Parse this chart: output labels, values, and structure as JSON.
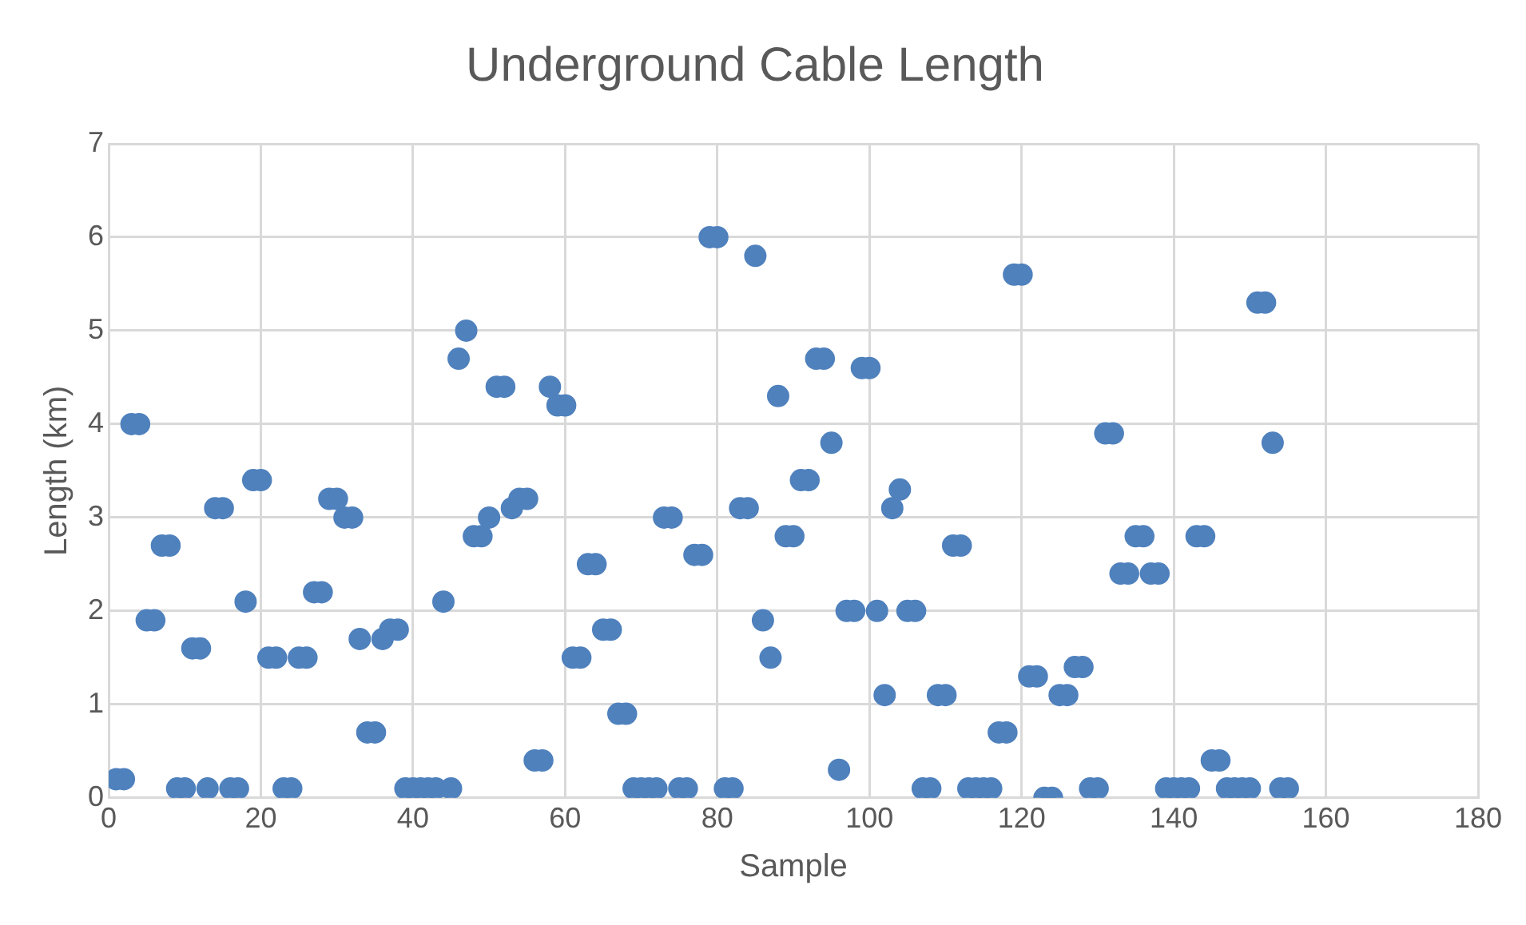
{
  "chart_data": {
    "type": "scatter",
    "title": "Underground Cable Length",
    "xlabel": "Sample",
    "ylabel": "Length (km)",
    "x": [
      1,
      2,
      3,
      4,
      5,
      6,
      7,
      8,
      9,
      10,
      11,
      12,
      13,
      14,
      15,
      16,
      17,
      18,
      19,
      20,
      21,
      22,
      23,
      24,
      25,
      26,
      27,
      28,
      29,
      30,
      31,
      32,
      33,
      34,
      35,
      36,
      37,
      38,
      39,
      40,
      41,
      42,
      43,
      44,
      45,
      46,
      47,
      48,
      49,
      50,
      51,
      52,
      53,
      54,
      55,
      56,
      57,
      58,
      59,
      60,
      61,
      62,
      63,
      64,
      65,
      66,
      67,
      68,
      69,
      70,
      71,
      72,
      73,
      74,
      75,
      76,
      77,
      78,
      79,
      80,
      81,
      82,
      83,
      84,
      85,
      86,
      87,
      88,
      89,
      90,
      91,
      92,
      93,
      94,
      95,
      96,
      97,
      98,
      99,
      100,
      101,
      102,
      103,
      104,
      105,
      106,
      107,
      108,
      109,
      110,
      111,
      112,
      113,
      114,
      115,
      116,
      117,
      118,
      119,
      120,
      121,
      122,
      123,
      124,
      125,
      126,
      127,
      128,
      129,
      130,
      131,
      132,
      133,
      134,
      135,
      136,
      137,
      138,
      139,
      140,
      141,
      142,
      143,
      144,
      145,
      146,
      147,
      148,
      149,
      150,
      151,
      152,
      153,
      154,
      155
    ],
    "series": [
      {
        "color": "#4f81bd",
        "values": [
          0.2,
          0.2,
          4.0,
          4.0,
          1.9,
          1.9,
          2.7,
          2.7,
          0.1,
          0.1,
          1.6,
          1.6,
          0.1,
          3.1,
          3.1,
          0.1,
          0.1,
          2.1,
          3.4,
          3.4,
          1.5,
          1.5,
          0.1,
          0.1,
          1.5,
          1.5,
          2.2,
          2.2,
          3.2,
          3.2,
          3.0,
          3.0,
          1.7,
          0.7,
          0.7,
          1.7,
          1.8,
          1.8,
          0.1,
          0.1,
          0.1,
          0.1,
          0.1,
          2.1,
          0.1,
          4.7,
          5.0,
          2.8,
          2.8,
          3.0,
          4.4,
          4.4,
          3.1,
          3.2,
          3.2,
          0.4,
          0.4,
          4.4,
          4.2,
          4.2,
          1.5,
          1.5,
          2.5,
          2.5,
          1.8,
          1.8,
          0.9,
          0.9,
          0.1,
          0.1,
          0.1,
          0.1,
          3.0,
          3.0,
          0.1,
          0.1,
          2.6,
          2.6,
          6.0,
          6.0,
          0.1,
          0.1,
          3.1,
          3.1,
          5.8,
          1.9,
          1.5,
          4.3,
          2.8,
          2.8,
          3.4,
          3.4,
          4.7,
          4.7,
          3.8,
          0.3,
          2.0,
          2.0,
          4.6,
          4.6,
          2.0,
          1.1,
          3.1,
          3.3,
          2.0,
          2.0,
          0.1,
          0.1,
          1.1,
          1.1,
          2.7,
          2.7,
          0.1,
          0.1,
          0.1,
          0.1,
          0.7,
          0.7,
          5.6,
          5.6,
          1.3,
          1.3,
          0.0,
          0.0,
          1.1,
          1.1,
          1.4,
          1.4,
          0.1,
          0.1,
          3.9,
          3.9,
          2.4,
          2.4,
          2.8,
          2.8,
          2.4,
          2.4,
          0.1,
          0.1,
          0.1,
          0.1,
          2.8,
          2.8,
          0.4,
          0.4,
          0.1,
          0.1,
          0.1,
          0.1,
          5.3,
          5.3,
          3.8,
          0.1,
          0.1
        ]
      }
    ],
    "xlim": [
      0,
      180
    ],
    "xticks": [
      0,
      20,
      40,
      60,
      80,
      100,
      120,
      140,
      160,
      180
    ],
    "ylim": [
      0,
      7
    ],
    "yticks": [
      0,
      1,
      2,
      3,
      4,
      5,
      6,
      7
    ],
    "grid": true,
    "marker": "circle",
    "legend": false
  }
}
